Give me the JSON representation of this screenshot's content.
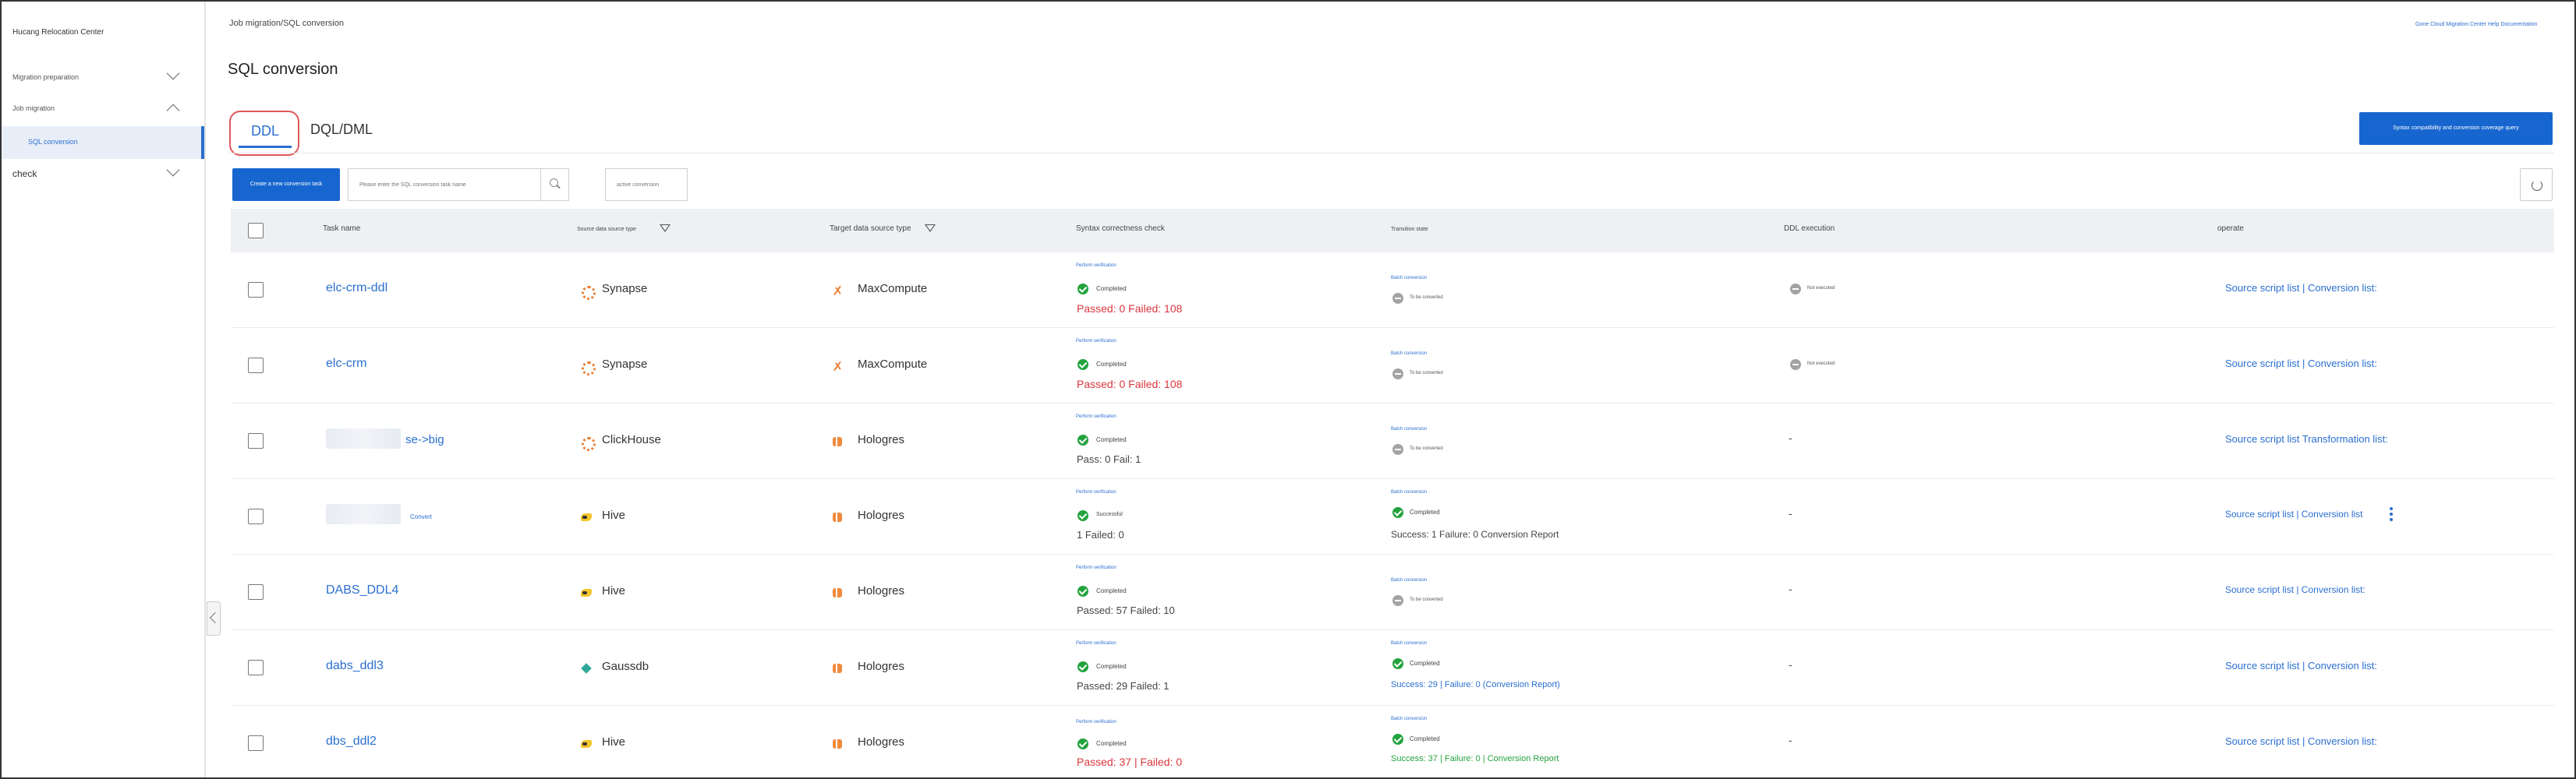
{
  "sidebar": {
    "title": "Hucang Relocation Center",
    "items": [
      {
        "label": "Migration preparation"
      },
      {
        "label": "Job migration"
      },
      {
        "label": "SQL conversion"
      },
      {
        "label": "check"
      }
    ]
  },
  "header": {
    "breadcrumb": "Job migration/SQL conversion",
    "doc_link": "Gone Cloud Migration Center Help Documentation",
    "title": "SQL conversion"
  },
  "tabs": [
    {
      "label": "DDL"
    },
    {
      "label": "DQL/DML"
    }
  ],
  "toolbar": {
    "syntax_button": "Syntax compatibility and conversion coverage query",
    "create_button": "Create a new conversion task",
    "search_placeholder": "Please enter the SQL conversion task name",
    "filter_label": "active conversion"
  },
  "table": {
    "columns": [
      "Task name",
      "Source data source type",
      "Target data source type",
      "Syntax correctness check",
      "Transition state",
      "DDL execution",
      "operate"
    ],
    "rows": [
      {
        "task": "elc-crm-ddl",
        "source": "Synapse",
        "target": "MaxCompute",
        "check_link": "Perform verification",
        "check_status": "Completed",
        "check_result": "Passed: 0 Failed: 108",
        "trans_link": "Batch conversion",
        "trans_status": "To be converted",
        "trans_result": "",
        "ddl_status": "Not executed",
        "ddl": "",
        "operate": "Source script list | Conversion list:"
      },
      {
        "task": "elc-crm",
        "source": "Synapse",
        "target": "MaxCompute",
        "check_link": "Perform verification",
        "check_status": "Completed",
        "check_result": "Passed: 0 Failed: 108",
        "trans_link": "Batch conversion",
        "trans_status": "To be converted",
        "trans_result": "",
        "ddl_status": "Not executed",
        "ddl": "",
        "operate": "Source script list | Conversion list:"
      },
      {
        "task": "se->big",
        "source": "ClickHouse",
        "target": "Hologres",
        "check_link": "Perform verification",
        "check_status": "Completed",
        "check_result": "Pass: 0 Fail: 1",
        "trans_link": "Batch conversion",
        "trans_status": "To be converted",
        "trans_result": "",
        "ddl_status": "",
        "ddl": "-",
        "operate": "Source script list Transformation list:"
      },
      {
        "task": "Convert",
        "source": "Hive",
        "target": "Hologres",
        "check_link": "Perform verification",
        "check_status": "Successful",
        "check_result": "1 Failed: 0",
        "trans_link": "Batch conversion",
        "trans_status": "Completed",
        "trans_result": "Success: 1 Failure: 0 Conversion Report",
        "ddl_status": "",
        "ddl": "-",
        "operate": "Source script list | Conversion list"
      },
      {
        "task": "DABS_DDL4",
        "source": "Hive",
        "target": "Hologres",
        "check_link": "Perform verification",
        "check_status": "Completed",
        "check_result": "Passed: 57 Failed: 10",
        "trans_link": "Batch conversion",
        "trans_status": "To be converted",
        "trans_result": "",
        "ddl_status": "",
        "ddl": "-",
        "operate": "Source script list | Conversion list:"
      },
      {
        "task": "dabs_ddl3",
        "source": "Gaussdb",
        "target": "Hologres",
        "check_link": "Perform verification",
        "check_status": "Completed",
        "check_result": "Passed: 29 Failed: 1",
        "trans_link": "Batch conversion",
        "trans_status": "Completed",
        "trans_result": "Success: 29 | Failure: 0 (Conversion Report)",
        "ddl_status": "",
        "ddl": "-",
        "operate": "Source script list | Conversion list:"
      },
      {
        "task": "dbs_ddl2",
        "source": "Hive",
        "target": "Hologres",
        "check_link": "Perform verification",
        "check_status": "Completed",
        "check_result": "Passed: 37 | Failed: 0",
        "trans_link": "Batch conversion",
        "trans_status": "Completed",
        "trans_result": "Success: 37 | Failure: 0 | Conversion Report",
        "ddl_status": "",
        "ddl": "-",
        "operate": "Source script list | Conversion list:"
      }
    ]
  },
  "colors": {
    "accent": "#1766cf",
    "success": "#23a33e",
    "error": "#d9363e",
    "highlight": "#e0585b"
  }
}
